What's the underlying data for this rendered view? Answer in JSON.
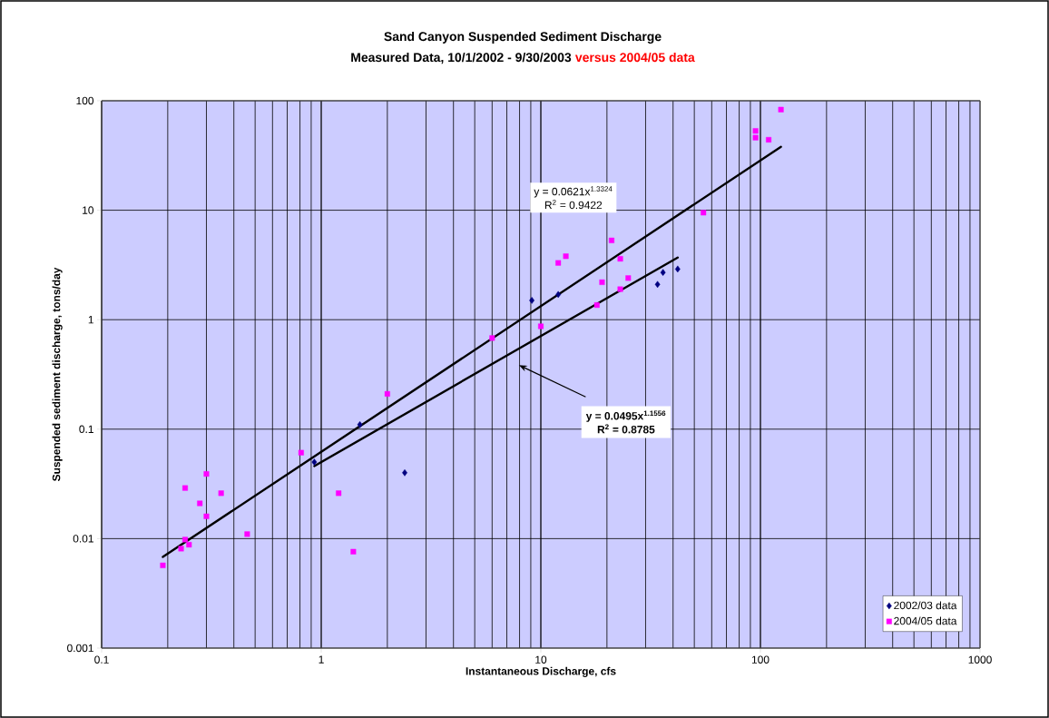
{
  "chart_data": {
    "type": "scatter",
    "title": "Sand Canyon Suspended Sediment Discharge",
    "subtitle": "Measured Data, 10/1/2002 - 9/30/2003",
    "xlabel": "Instantaneous Discharge, cfs",
    "ylabel": "Suspended sediment discharge, tons/day",
    "annotations": [
      "versus 2004/05 data",
      "y = 0.0621x$^{1.3324}$",
      "R$^{2}$ = 0.9422",
      "y = 0.0495x$^{1.1556}$",
      "R$^{2}$ = 0.8785"
    ],
    "log": "xy",
    "grid": true,
    "legend": "bottom right",
    "xlim": [
      0.1,
      1000
    ],
    "ylim": [
      0.001,
      100
    ],
    "xticks": [
      0.1,
      1,
      10,
      100,
      1000
    ],
    "yticks": [
      0.001,
      0.01,
      0.1,
      1,
      10,
      100
    ],
    "series": [
      {
        "name": "2002/03 data",
        "color": "#000080",
        "marker": "diamond",
        "x": [
          0.93,
          1.5,
          2.4,
          9.1,
          12,
          34,
          36,
          42
        ],
        "values": [
          0.05,
          0.11,
          0.04,
          1.5,
          1.7,
          2.1,
          2.7,
          2.9
        ]
      },
      {
        "name": "2004/05 data",
        "color": "#ff00ff",
        "marker": "square",
        "x": [
          0.19,
          0.23,
          0.24,
          0.25,
          0.24,
          0.3,
          0.28,
          0.3,
          0.35,
          0.46,
          0.81,
          1.2,
          1.4,
          2.0,
          6.0,
          10,
          12,
          13,
          18,
          19,
          21,
          23,
          23,
          25,
          55,
          95,
          95,
          109,
          124
        ],
        "values": [
          0.0057,
          0.0081,
          0.0098,
          0.0088,
          0.029,
          0.039,
          0.021,
          0.016,
          0.026,
          0.011,
          0.061,
          0.026,
          0.0076,
          0.21,
          0.68,
          0.87,
          3.3,
          3.8,
          1.36,
          2.2,
          5.3,
          3.6,
          1.9,
          2.4,
          9.5,
          53,
          46,
          44,
          83
        ]
      },
      {
        "type": "line",
        "color": "#000000",
        "marker": "none",
        "x": [
          0.19,
          124
        ],
        "values": [
          0.0068,
          38
        ]
      },
      {
        "type": "line",
        "color": "#000000",
        "marker": "none",
        "x": [
          0.93,
          42
        ],
        "values": [
          0.046,
          3.7
        ]
      }
    ]
  }
}
